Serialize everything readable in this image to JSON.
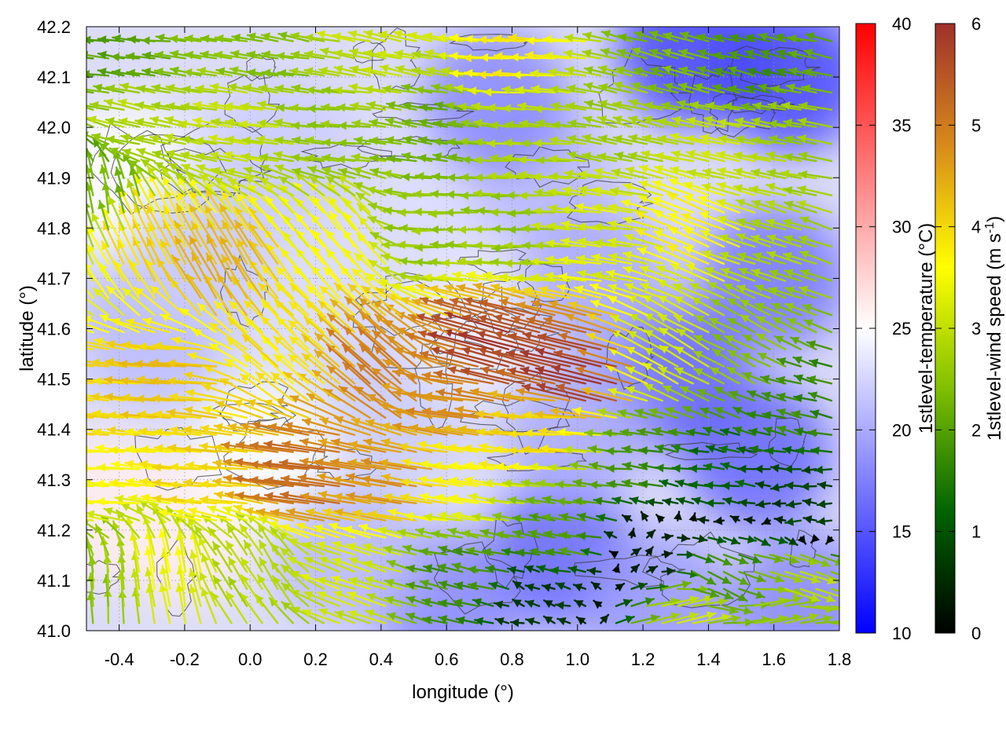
{
  "chart_data": {
    "type": "heatmap",
    "title": "",
    "xlabel": "longitude (°)",
    "ylabel": "latitude (°)",
    "xlim": [
      -0.5,
      1.8
    ],
    "ylim": [
      41.0,
      42.2
    ],
    "x_ticks": [
      "-0.4",
      "-0.2",
      "0.0",
      "0.2",
      "0.4",
      "0.6",
      "0.8",
      "1.0",
      "1.2",
      "1.4",
      "1.6",
      "1.8"
    ],
    "y_ticks": [
      "41.0",
      "41.1",
      "41.2",
      "41.3",
      "41.4",
      "41.5",
      "41.6",
      "41.7",
      "41.8",
      "41.9",
      "42.0",
      "42.1",
      "42.2"
    ],
    "grid": true,
    "temperature_colorbar": {
      "label": "1stlevel-temperature (°C)",
      "range": [
        10,
        40
      ],
      "ticks": [
        "10",
        "15",
        "20",
        "25",
        "30",
        "35",
        "40"
      ],
      "colors": [
        "#0000ff",
        "#ffffff",
        "#ff0000"
      ]
    },
    "wind_colorbar": {
      "label_prefix": "1stlevel-wind speed (m s",
      "label_exponent": "-1",
      "label_suffix": ")",
      "range": [
        0,
        6
      ],
      "ticks": [
        "0",
        "1",
        "2",
        "3",
        "4",
        "5",
        "6"
      ],
      "colors": [
        "#000000",
        "#006400",
        "#7fbf00",
        "#ffff00",
        "#d88a1a",
        "#a0302c"
      ]
    },
    "temperature_field": [
      {
        "lon": -0.45,
        "lat": 41.25,
        "temp": 26
      },
      {
        "lon": -0.2,
        "lat": 41.2,
        "temp": 26
      },
      {
        "lon": -0.4,
        "lat": 41.9,
        "temp": 25
      },
      {
        "lon": -0.3,
        "lat": 41.6,
        "temp": 21
      },
      {
        "lon": 0.05,
        "lat": 41.35,
        "temp": 25
      },
      {
        "lon": 0.2,
        "lat": 41.6,
        "temp": 23
      },
      {
        "lon": 0.45,
        "lat": 41.45,
        "temp": 22
      },
      {
        "lon": 0.7,
        "lat": 41.6,
        "temp": 24
      },
      {
        "lon": 0.1,
        "lat": 41.95,
        "temp": 22
      },
      {
        "lon": 0.55,
        "lat": 41.85,
        "temp": 23
      },
      {
        "lon": 0.9,
        "lat": 41.9,
        "temp": 21
      },
      {
        "lon": 0.75,
        "lat": 42.05,
        "temp": 18
      },
      {
        "lon": 1.35,
        "lat": 42.15,
        "temp": 14
      },
      {
        "lon": 1.65,
        "lat": 42.1,
        "temp": 14
      },
      {
        "lon": 1.3,
        "lat": 41.5,
        "temp": 16
      },
      {
        "lon": 1.6,
        "lat": 41.7,
        "temp": 17
      },
      {
        "lon": 1.55,
        "lat": 41.35,
        "temp": 16
      },
      {
        "lon": 0.95,
        "lat": 41.15,
        "temp": 16
      },
      {
        "lon": 0.6,
        "lat": 41.05,
        "temp": 18
      },
      {
        "lon": 1.25,
        "lat": 41.05,
        "temp": 19
      },
      {
        "lon": 1.7,
        "lat": 41.05,
        "temp": 18
      },
      {
        "lon": 1.0,
        "lat": 41.4,
        "temp": 20
      },
      {
        "lon": 1.05,
        "lat": 41.7,
        "temp": 20
      },
      {
        "lon": 0.3,
        "lat": 41.15,
        "temp": 21
      },
      {
        "lon": -0.15,
        "lat": 41.75,
        "temp": 22
      }
    ],
    "wind_field": [
      {
        "lon": -0.4,
        "lat": 41.3,
        "u": -3.6,
        "v": 0.2
      },
      {
        "lon": -0.1,
        "lat": 41.3,
        "u": -4.0,
        "v": 0.3
      },
      {
        "lon": 0.2,
        "lat": 41.3,
        "u": -5.2,
        "v": 0.6
      },
      {
        "lon": 0.45,
        "lat": 41.3,
        "u": -4.6,
        "v": 0.8
      },
      {
        "lon": 0.7,
        "lat": 41.3,
        "u": -3.6,
        "v": 0.5
      },
      {
        "lon": -0.2,
        "lat": 41.5,
        "u": -4.2,
        "v": 0.3
      },
      {
        "lon": 0.15,
        "lat": 41.55,
        "u": -2.8,
        "v": 2.6
      },
      {
        "lon": 0.45,
        "lat": 41.5,
        "u": -3.6,
        "v": 3.4
      },
      {
        "lon": 0.8,
        "lat": 41.55,
        "u": -5.6,
        "v": 1.6
      },
      {
        "lon": 1.05,
        "lat": 41.5,
        "u": -5.8,
        "v": 1.4
      },
      {
        "lon": -0.3,
        "lat": 41.75,
        "u": -1.8,
        "v": 3.6
      },
      {
        "lon": -0.05,
        "lat": 41.7,
        "u": -2.2,
        "v": 3.8
      },
      {
        "lon": 0.3,
        "lat": 41.75,
        "u": -2.2,
        "v": 2.8
      },
      {
        "lon": 0.6,
        "lat": 41.8,
        "u": -2.6,
        "v": 0.0
      },
      {
        "lon": 0.85,
        "lat": 41.8,
        "u": -2.6,
        "v": 0.0
      },
      {
        "lon": 1.1,
        "lat": 41.8,
        "u": -3.2,
        "v": 0.4
      },
      {
        "lon": 1.4,
        "lat": 41.8,
        "u": -3.4,
        "v": 1.4
      },
      {
        "lon": 1.65,
        "lat": 41.75,
        "u": -2.6,
        "v": 0.8
      },
      {
        "lon": -0.3,
        "lat": 42.0,
        "u": -2.8,
        "v": 0.6
      },
      {
        "lon": 0.0,
        "lat": 42.0,
        "u": -3.0,
        "v": 0.4
      },
      {
        "lon": 0.3,
        "lat": 42.0,
        "u": -2.6,
        "v": 0.2
      },
      {
        "lon": 0.6,
        "lat": 42.0,
        "u": -2.2,
        "v": 0.4
      },
      {
        "lon": 0.9,
        "lat": 42.0,
        "u": -2.8,
        "v": 0.2
      },
      {
        "lon": 1.2,
        "lat": 42.0,
        "u": -2.6,
        "v": 0.6
      },
      {
        "lon": 1.5,
        "lat": 41.95,
        "u": -3.0,
        "v": 0.6
      },
      {
        "lon": -0.35,
        "lat": 42.15,
        "u": -2.0,
        "v": 0.2
      },
      {
        "lon": 0.05,
        "lat": 42.15,
        "u": -2.4,
        "v": 0.4
      },
      {
        "lon": 0.45,
        "lat": 42.15,
        "u": -3.0,
        "v": 0.6
      },
      {
        "lon": 0.85,
        "lat": 42.15,
        "u": -3.8,
        "v": 0.2
      },
      {
        "lon": 1.3,
        "lat": 42.15,
        "u": -2.2,
        "v": 0.6
      },
      {
        "lon": 1.6,
        "lat": 42.1,
        "u": -1.8,
        "v": 0.4
      },
      {
        "lon": 1.3,
        "lat": 41.55,
        "u": -2.8,
        "v": 1.6
      },
      {
        "lon": 1.55,
        "lat": 41.55,
        "u": -2.2,
        "v": 1.2
      },
      {
        "lon": 1.7,
        "lat": 41.45,
        "u": -1.6,
        "v": 0.4
      },
      {
        "lon": 1.2,
        "lat": 41.35,
        "u": -1.8,
        "v": 0.2
      },
      {
        "lon": 1.45,
        "lat": 41.3,
        "u": -1.2,
        "v": 0.2
      },
      {
        "lon": 1.7,
        "lat": 41.25,
        "u": -0.8,
        "v": 0.0
      },
      {
        "lon": 1.0,
        "lat": 41.2,
        "u": -2.0,
        "v": 0.3
      },
      {
        "lon": 1.2,
        "lat": 41.15,
        "u": 0.3,
        "v": 0.2
      },
      {
        "lon": 1.4,
        "lat": 41.1,
        "u": 1.8,
        "v": -0.9
      },
      {
        "lon": 1.65,
        "lat": 41.1,
        "u": 2.8,
        "v": -1.0
      },
      {
        "lon": 1.3,
        "lat": 41.03,
        "u": 3.0,
        "v": 0.8
      },
      {
        "lon": 1.6,
        "lat": 41.03,
        "u": 2.6,
        "v": 0.6
      },
      {
        "lon": 0.9,
        "lat": 41.05,
        "u": -0.6,
        "v": 0.2
      },
      {
        "lon": 0.65,
        "lat": 41.1,
        "u": -1.8,
        "v": 0.4
      },
      {
        "lon": 0.35,
        "lat": 41.1,
        "u": -3.0,
        "v": 1.0
      },
      {
        "lon": 0.05,
        "lat": 41.1,
        "u": -1.6,
        "v": 2.4
      },
      {
        "lon": -0.25,
        "lat": 41.1,
        "u": -0.6,
        "v": 3.4
      },
      {
        "lon": -0.45,
        "lat": 41.05,
        "u": -0.2,
        "v": 2.6
      },
      {
        "lon": -0.45,
        "lat": 41.45,
        "u": -4.0,
        "v": 0.4
      },
      {
        "lon": 0.65,
        "lat": 41.45,
        "u": -4.8,
        "v": 0.6
      },
      {
        "lon": 0.95,
        "lat": 41.4,
        "u": -4.0,
        "v": 0.2
      },
      {
        "lon": -0.45,
        "lat": 41.85,
        "u": -0.4,
        "v": 2.2
      },
      {
        "lon": 1.7,
        "lat": 42.0,
        "u": -2.6,
        "v": 0.4
      }
    ]
  }
}
